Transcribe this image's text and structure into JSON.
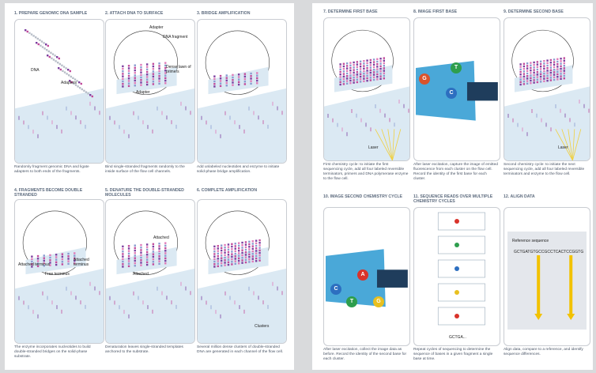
{
  "panels": [
    {
      "title": "1. PREPARE GENOMIC DNA SAMPLE",
      "caption": "Randomly fragment genomic DNA and ligate adapters to both ends of the fragments.",
      "labels": [
        "DNA",
        "Adapters"
      ]
    },
    {
      "title": "2. ATTACH DNA TO SURFACE",
      "caption": "Bind single-stranded fragments randomly to the inside surface of the flow cell channels.",
      "labels": [
        "Adapter",
        "DNA fragment",
        "Dense lawn of primers",
        "Adapter"
      ]
    },
    {
      "title": "3. BRIDGE AMPLIFICATION",
      "caption": "Add unlabeled nucleotides and enzyme to initiate solid-phase bridge amplification.",
      "labels": []
    },
    {
      "title": "4. FRAGMENTS BECOME DOUBLE STRANDED",
      "caption": "The enzyme incorporates nucleotides to build double-stranded bridges on the solid-phase substrate.",
      "labels": [
        "Attached terminus",
        "Free terminus",
        "Attached terminus"
      ]
    },
    {
      "title": "5. DENATURE THE DOUBLE-STRANDED MOLECULES",
      "caption": "Denaturation leaves single-stranded templates anchored to the substrate.",
      "labels": [
        "Attached",
        "Attached"
      ]
    },
    {
      "title": "6. COMPLETE AMPLIFICATION",
      "caption": "Several million dense clusters of double-stranded DNA are generated in each channel of the flow cell.",
      "labels": [
        "Clusters"
      ]
    },
    {
      "title": "7. DETERMINE FIRST BASE",
      "caption": "First chemistry cycle: to initiate the first sequencing cycle, add all four labeled reversible terminators, primers and DNA polymerase enzyme to the flow cell.",
      "labels": [
        "Laser"
      ]
    },
    {
      "title": "8. IMAGE FIRST BASE",
      "caption": "After laser excitation, capture the image of emitted fluorescence from each cluster on the flow cell. Record the identity of the first base for each cluster.",
      "labels": [
        "G",
        "T",
        "C"
      ]
    },
    {
      "title": "9. DETERMINE SECOND BASE",
      "caption": "Second chemistry cycle: to initiate the next sequencing cycle, add all four labeled reversible terminators and enzyme to the flow cell.",
      "labels": [
        "Laser"
      ]
    },
    {
      "title": "10. IMAGE SECOND CHEMISTRY CYCLE",
      "caption": "After laser excitation, collect the image data as before. Record the identity of the second base for each cluster.",
      "labels": [
        "C",
        "A",
        "T",
        "G"
      ]
    },
    {
      "title": "11. SEQUENCE READS OVER MULTIPLE CHEMISTRY CYCLES",
      "caption": "Repeat cycles of sequencing to determine the sequence of bases in a given fragment a single base at time.",
      "labels": [
        "GCTGA..."
      ]
    },
    {
      "title": "12. ALIGN DATA",
      "caption": "Align data, compare to a reference, and identify sequence differences.",
      "labels": [
        "Reference sequence",
        "GCTGATGTGCCGCCTCACTCCGGTG"
      ]
    }
  ]
}
